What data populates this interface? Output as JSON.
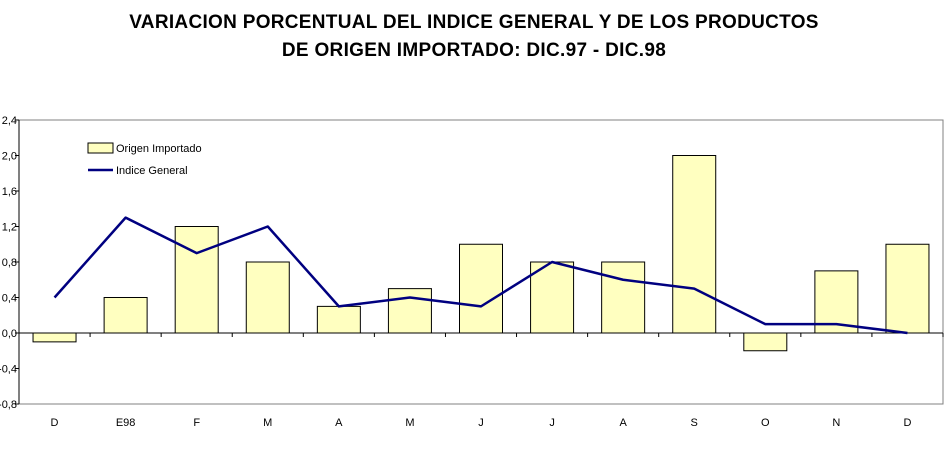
{
  "chart_data": {
    "type": "bar",
    "title_line1": "VARIACION PORCENTUAL DEL INDICE GENERAL Y DE LOS PRODUCTOS",
    "title_line2": "DE ORIGEN IMPORTADO: DIC.97 - DIC.98",
    "categories": [
      "D",
      "E98",
      "F",
      "M",
      "A",
      "M",
      "J",
      "J",
      "A",
      "S",
      "O",
      "N",
      "D"
    ],
    "series": [
      {
        "name": "Origen Importado",
        "kind": "bar",
        "color": "#FFFFC0",
        "values": [
          -0.1,
          0.4,
          1.2,
          0.8,
          0.3,
          0.5,
          1.0,
          0.8,
          0.8,
          2.0,
          -0.2,
          0.7,
          1.0
        ]
      },
      {
        "name": "Indice General",
        "kind": "line",
        "color": "#000080",
        "values": [
          0.4,
          1.3,
          0.9,
          1.2,
          0.3,
          0.4,
          0.3,
          0.8,
          0.6,
          0.5,
          0.1,
          0.1,
          0.0
        ]
      }
    ],
    "ylim": [
      -0.8,
      2.4
    ],
    "yticks": [
      "2,4",
      "2,0",
      "1,6",
      "1,2",
      "0,8",
      "0,4",
      "0,0",
      "-0,4",
      "-0,8"
    ],
    "ytick_values": [
      2.4,
      2.0,
      1.6,
      1.2,
      0.8,
      0.4,
      0.0,
      -0.4,
      -0.8
    ],
    "legend_position": "top-left",
    "grid": false
  }
}
